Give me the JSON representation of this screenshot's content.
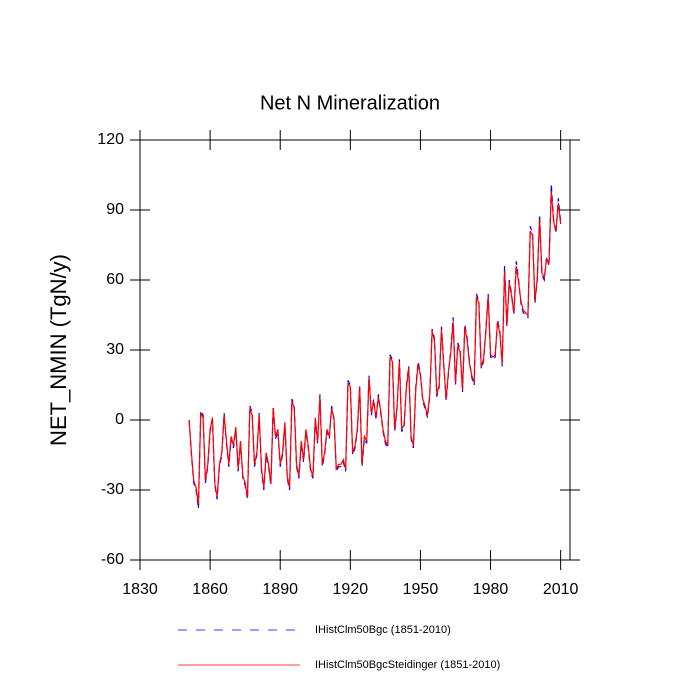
{
  "chart_data": {
    "type": "line",
    "title": "Net N Mineralization",
    "y_label": "NET_NMIN  (TgN/y)",
    "x": [
      1851,
      1852,
      1853,
      1854,
      1855,
      1856,
      1857,
      1858,
      1859,
      1860,
      1861,
      1862,
      1863,
      1864,
      1865,
      1866,
      1867,
      1868,
      1869,
      1870,
      1871,
      1872,
      1873,
      1874,
      1875,
      1876,
      1877,
      1878,
      1879,
      1880,
      1881,
      1882,
      1883,
      1884,
      1885,
      1886,
      1887,
      1888,
      1889,
      1890,
      1891,
      1892,
      1893,
      1894,
      1895,
      1896,
      1897,
      1898,
      1899,
      1900,
      1901,
      1902,
      1903,
      1904,
      1905,
      1906,
      1907,
      1908,
      1909,
      1910,
      1911,
      1912,
      1913,
      1914,
      1915,
      1916,
      1917,
      1918,
      1919,
      1920,
      1921,
      1922,
      1923,
      1924,
      1925,
      1926,
      1927,
      1928,
      1929,
      1930,
      1931,
      1932,
      1933,
      1934,
      1935,
      1936,
      1937,
      1938,
      1939,
      1940,
      1941,
      1942,
      1943,
      1944,
      1945,
      1946,
      1947,
      1948,
      1949,
      1950,
      1951,
      1952,
      1953,
      1954,
      1955,
      1956,
      1957,
      1958,
      1959,
      1960,
      1961,
      1962,
      1963,
      1964,
      1965,
      1966,
      1967,
      1968,
      1969,
      1970,
      1971,
      1972,
      1973,
      1974,
      1975,
      1976,
      1977,
      1978,
      1979,
      1980,
      1981,
      1982,
      1983,
      1984,
      1985,
      1986,
      1987,
      1988,
      1989,
      1990,
      1991,
      1992,
      1993,
      1994,
      1995,
      1996,
      1997,
      1998,
      1999,
      2000,
      2001,
      2002,
      2003,
      2004,
      2005,
      2006,
      2007,
      2008,
      2009,
      2010
    ],
    "series": [
      {
        "name": "IHistClm50Bgc (1851-2010)",
        "color": "#0000ff",
        "dashed": true,
        "values": [
          0,
          -15,
          -27,
          -30,
          -38,
          4,
          2,
          -27,
          -20,
          -5,
          0,
          -28,
          -34,
          -20,
          -15,
          3,
          -10,
          -20,
          -8,
          -12,
          -4,
          -22,
          -10,
          -25,
          -28,
          -34,
          6,
          3,
          -20,
          -15,
          3,
          -22,
          -30,
          -15,
          -20,
          -28,
          6,
          -8,
          -5,
          -20,
          -15,
          -2,
          -25,
          -30,
          9,
          6,
          -20,
          -25,
          -10,
          -18,
          -5,
          -12,
          -22,
          -25,
          0,
          -10,
          11,
          -20,
          -15,
          -5,
          -8,
          6,
          0,
          -22,
          -20,
          -20,
          -18,
          -22,
          17,
          15,
          -15,
          -12,
          -5,
          15,
          -20,
          -8,
          -10,
          19,
          2,
          9,
          0,
          11,
          3,
          -5,
          -10,
          -12,
          28,
          26,
          -5,
          5,
          26,
          -5,
          -3,
          15,
          23,
          -8,
          -12,
          14,
          25,
          20,
          8,
          5,
          1,
          10,
          39,
          35,
          10,
          14,
          40,
          24,
          8,
          20,
          30,
          44,
          15,
          33,
          30,
          12,
          41,
          35,
          25,
          18,
          15,
          54,
          51,
          22,
          25,
          39,
          54,
          27,
          26,
          27,
          43,
          38,
          23,
          66,
          40,
          60,
          54,
          45,
          68,
          60,
          50,
          46,
          45,
          44,
          83,
          80,
          50,
          60,
          88,
          62,
          60,
          70,
          66,
          101,
          86,
          80,
          95,
          85
        ]
      },
      {
        "name": "IHistClm50BgcSteidinger (1851-2010)",
        "color": "#ff0000",
        "dashed": false,
        "values": [
          0,
          -14,
          -26,
          -29,
          -36,
          3,
          1,
          -26,
          -19,
          -4,
          1,
          -27,
          -33,
          -19,
          -14,
          2,
          -9,
          -19,
          -7,
          -11,
          -3,
          -21,
          -9,
          -24,
          -27,
          -33,
          5,
          2,
          -19,
          -14,
          2,
          -21,
          -29,
          -14,
          -19,
          -27,
          5,
          -7,
          -4,
          -19,
          -14,
          -1,
          -24,
          -29,
          8,
          5,
          -19,
          -24,
          -9,
          -17,
          -4,
          -11,
          -21,
          -24,
          1,
          -9,
          10,
          -19,
          -14,
          -4,
          -7,
          5,
          1,
          -21,
          -19,
          -19,
          -17,
          -21,
          16,
          14,
          -14,
          -11,
          -4,
          14,
          -19,
          -7,
          -9,
          18,
          3,
          8,
          1,
          10,
          4,
          -4,
          -9,
          -11,
          27,
          25,
          -4,
          6,
          25,
          -4,
          -2,
          14,
          22,
          -7,
          -11,
          13,
          24,
          19,
          9,
          6,
          2,
          11,
          38,
          34,
          11,
          15,
          39,
          23,
          9,
          21,
          29,
          42,
          16,
          32,
          29,
          13,
          40,
          34,
          24,
          19,
          16,
          53,
          50,
          23,
          26,
          38,
          53,
          28,
          27,
          28,
          42,
          37,
          24,
          64,
          41,
          59,
          53,
          46,
          66,
          59,
          51,
          47,
          46,
          45,
          81,
          79,
          51,
          61,
          86,
          63,
          61,
          69,
          67,
          98,
          85,
          81,
          93,
          84
        ]
      }
    ],
    "xlim": [
      1830,
      2014
    ],
    "xticks": [
      1830,
      1860,
      1890,
      1920,
      1950,
      1980,
      2010
    ],
    "ylim": [
      -60,
      120
    ],
    "yticks": [
      -60,
      -30,
      0,
      30,
      60,
      90,
      120
    ]
  }
}
